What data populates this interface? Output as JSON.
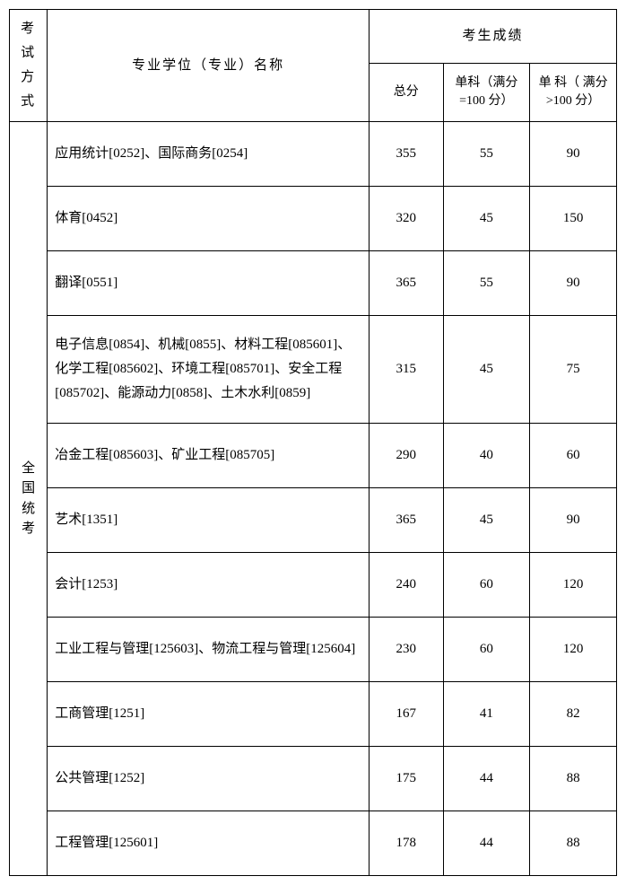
{
  "table": {
    "headers": {
      "exam_type": "考试方式",
      "major_name": "专业学位（专业）名称",
      "score_group": "考生成绩",
      "total": "总分",
      "sub1": "单科（满分=100 分）",
      "sub2": "单 科（ 满分>100 分）"
    },
    "exam_type_label": "全国统考",
    "rows": [
      {
        "major": "应用统计[0252]、国际商务[0254]",
        "total": "355",
        "s1": "55",
        "s2": "90",
        "height": "row-tall"
      },
      {
        "major": "体育[0452]",
        "total": "320",
        "s1": "45",
        "s2": "150",
        "height": "row-tall"
      },
      {
        "major": "翻译[0551]",
        "total": "365",
        "s1": "55",
        "s2": "90",
        "height": "row-tall"
      },
      {
        "major": "电子信息[0854]、机械[0855]、材料工程[085601]、化学工程[085602]、环境工程[085701]、安全工程[085702]、能源动力[0858]、土木水利[0859]",
        "total": "315",
        "s1": "45",
        "s2": "75",
        "height": "row-xl"
      },
      {
        "major": "冶金工程[085603]、矿业工程[085705]",
        "total": "290",
        "s1": "40",
        "s2": "60",
        "height": "row-tall"
      },
      {
        "major": "艺术[1351]",
        "total": "365",
        "s1": "45",
        "s2": "90",
        "height": "row-tall"
      },
      {
        "major": "会计[1253]",
        "total": "240",
        "s1": "60",
        "s2": "120",
        "height": "row-tall"
      },
      {
        "major": "工业工程与管理[125603]、物流工程与管理[125604]",
        "total": "230",
        "s1": "60",
        "s2": "120",
        "height": "row-tall"
      },
      {
        "major": "工商管理[1251]",
        "total": "167",
        "s1": "41",
        "s2": "82",
        "height": "row-tall"
      },
      {
        "major": "公共管理[1252]",
        "total": "175",
        "s1": "44",
        "s2": "88",
        "height": "row-tall"
      },
      {
        "major": "工程管理[125601]",
        "total": "178",
        "s1": "44",
        "s2": "88",
        "height": "row-tall"
      }
    ]
  },
  "colors": {
    "border": "#000000",
    "text": "#000000",
    "background": "#ffffff"
  }
}
